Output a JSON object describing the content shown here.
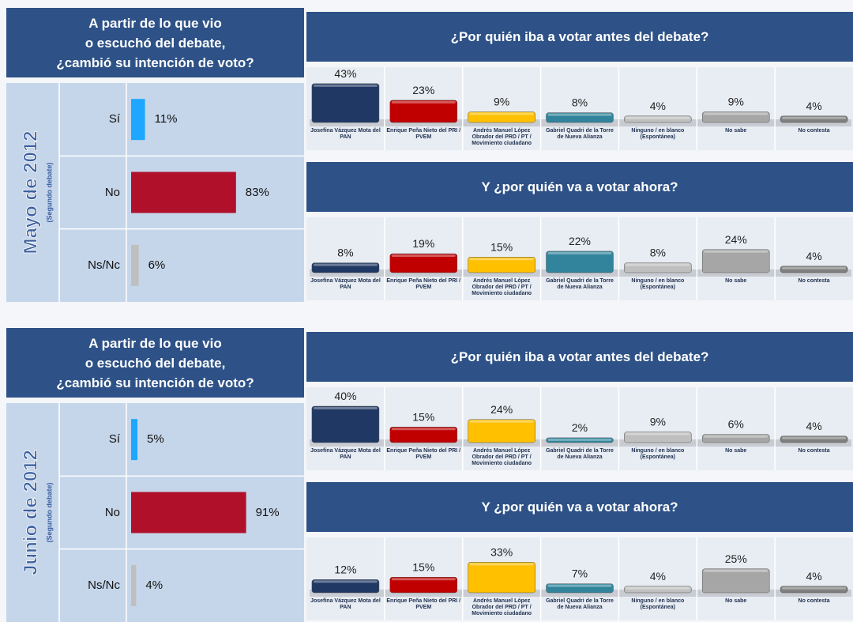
{
  "chart_data": [
    {
      "type": "hbar",
      "title": [
        "A partir de lo que vio",
        "o escuchó del debate,",
        "¿cambió su intención de voto?"
      ],
      "period": "Mayo de 2012",
      "note": "(Segundo debate)",
      "categories": [
        "Sí",
        "No",
        "Ns/Nc"
      ],
      "values": [
        11,
        83,
        6
      ],
      "value_labels": [
        "11%",
        "83%",
        "6%"
      ],
      "colors": [
        "#1ea7ff",
        "#b0102a",
        "#bfbfbf"
      ]
    },
    {
      "type": "column",
      "title": "¿Por quién iba a votar antes del debate?",
      "categories": [
        "Josefina Vázquez Mota del PAN",
        "Enrique Peña Nieto del PRI / PVEM",
        "Andrés Manuel López Obrador del PRD / PT / Movimiento ciudadano",
        "Gabriel Quadri de la Torre de Nueva Alianza",
        "Ninguno / en blanco (Espontánea)",
        "No sabe",
        "No contesta"
      ],
      "values": [
        43,
        23,
        9,
        8,
        4,
        9,
        4
      ],
      "value_labels": [
        "43%",
        "23%",
        "9%",
        "8%",
        "4%",
        "9%",
        "4%"
      ],
      "colors": [
        "#1f3864",
        "#c00000",
        "#ffc000",
        "#31849b",
        "#bfbfbf",
        "#a6a6a6",
        "#7f7f7f"
      ]
    },
    {
      "type": "column",
      "title": "Y ¿por quién va a votar ahora?",
      "categories": [
        "Josefina Vázquez Mota del PAN",
        "Enrique Peña Nieto del PRI / PVEM",
        "Andrés Manuel López Obrador del PRD / PT / Movimiento ciudadano",
        "Gabriel Quadri de la Torre de Nueva Alianza",
        "Ninguno / en blanco (Espontánea)",
        "No sabe",
        "No contesta"
      ],
      "values": [
        8,
        19,
        15,
        22,
        8,
        24,
        4
      ],
      "value_labels": [
        "8%",
        "19%",
        "15%",
        "22%",
        "8%",
        "24%",
        "4%"
      ],
      "colors": [
        "#1f3864",
        "#c00000",
        "#ffc000",
        "#31849b",
        "#bfbfbf",
        "#a6a6a6",
        "#7f7f7f"
      ]
    },
    {
      "type": "hbar",
      "title": [
        "A partir de lo que vio",
        "o escuchó del debate,",
        "¿cambió su intención de voto?"
      ],
      "period": "Junio de 2012",
      "note": "(Segundo debate)",
      "categories": [
        "Sí",
        "No",
        "Ns/Nc"
      ],
      "values": [
        5,
        91,
        4
      ],
      "value_labels": [
        "5%",
        "91%",
        "4%"
      ],
      "colors": [
        "#1ea7ff",
        "#b0102a",
        "#bfbfbf"
      ]
    },
    {
      "type": "column",
      "title": "¿Por quién iba a votar antes del debate?",
      "categories": [
        "Josefina Vázquez Mota del PAN",
        "Enrique Peña Nieto del PRI / PVEM",
        "Andrés Manuel López Obrador del PRD / PT / Movimiento ciudadano",
        "Gabriel Quadri de la Torre de Nueva Alianza",
        "Ninguno / en blanco (Espontánea)",
        "No sabe",
        "No contesta"
      ],
      "values": [
        40,
        15,
        24,
        2,
        9,
        6,
        4
      ],
      "value_labels": [
        "40%",
        "15%",
        "24%",
        "2%",
        "9%",
        "6%",
        "4%"
      ],
      "colors": [
        "#1f3864",
        "#c00000",
        "#ffc000",
        "#31849b",
        "#bfbfbf",
        "#a6a6a6",
        "#7f7f7f"
      ]
    },
    {
      "type": "column",
      "title": "Y ¿por quién va a votar ahora?",
      "categories": [
        "Josefina Vázquez Mota del PAN",
        "Enrique Peña Nieto del PRI / PVEM",
        "Andrés Manuel López Obrador del PRD / PT / Movimiento ciudadano",
        "Gabriel Quadri de la Torre de Nueva Alianza",
        "Ninguno / en blanco (Espontánea)",
        "No sabe",
        "No contesta"
      ],
      "values": [
        12,
        15,
        33,
        7,
        4,
        25,
        4
      ],
      "value_labels": [
        "12%",
        "15%",
        "33%",
        "7%",
        "4%",
        "25%",
        "4%"
      ],
      "colors": [
        "#1f3864",
        "#c00000",
        "#ffc000",
        "#31849b",
        "#bfbfbf",
        "#a6a6a6",
        "#7f7f7f"
      ]
    }
  ]
}
